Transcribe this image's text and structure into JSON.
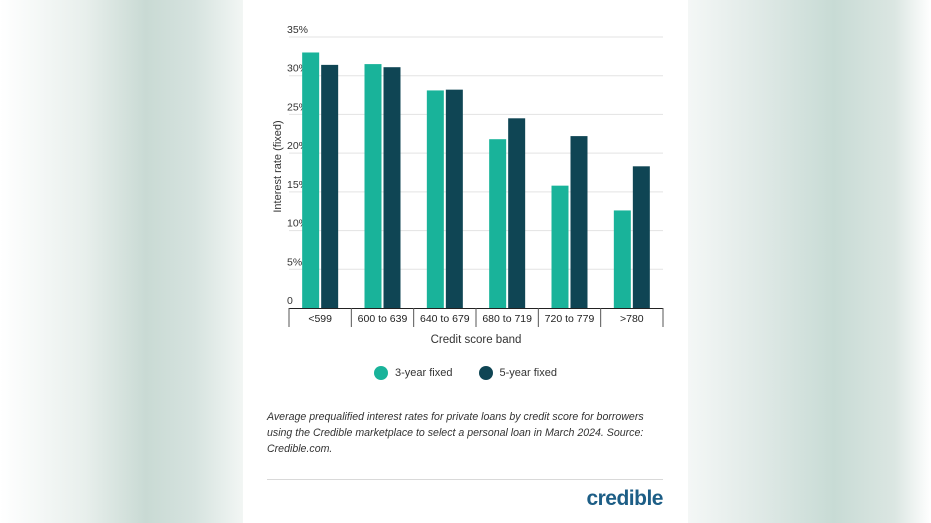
{
  "colors": {
    "series1": "#19b39a",
    "series2": "#0f4554",
    "logo": "#1d5e86"
  },
  "chart_data": {
    "type": "bar",
    "categories": [
      "<599",
      "600 to 639",
      "640 to 679",
      "680 to 719",
      "720 to 779",
      ">780"
    ],
    "series": [
      {
        "name": "3-year fixed",
        "values": [
          33.0,
          31.5,
          28.1,
          21.8,
          15.8,
          12.6
        ]
      },
      {
        "name": "5-year fixed",
        "values": [
          31.4,
          31.1,
          28.2,
          24.5,
          22.2,
          18.3
        ]
      }
    ],
    "ylim": [
      0,
      35
    ],
    "yticks": [
      "0",
      "5%",
      "10%",
      "15%",
      "20%",
      "25%",
      "30%",
      "35%"
    ],
    "ylabel": "Interest rate (fixed)",
    "xlabel": "Credit score band",
    "grid": true,
    "legend_position": "bottom"
  },
  "caption": "Average prequalified interest rates for private loans by credit score for borrowers using the Credible marketplace to select a personal loan in March 2024. Source: Credible.com.",
  "logo_text": "credible"
}
